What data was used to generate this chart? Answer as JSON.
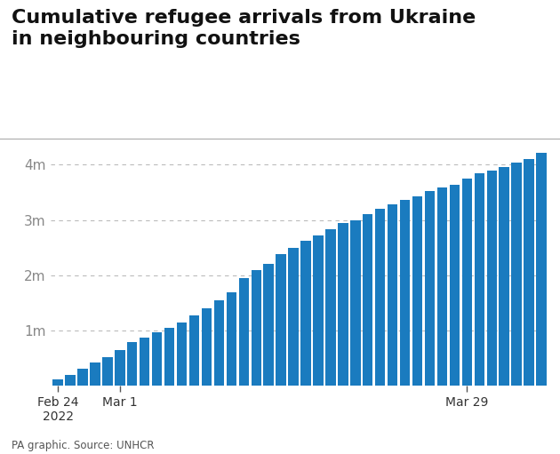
{
  "title_line1": "Cumulative refugee arrivals from Ukraine",
  "title_line2": "in neighbouring countries",
  "bar_color": "#1a7bbf",
  "background_color": "#ffffff",
  "footnote": "PA graphic. Source: UNHCR",
  "ytick_labels": [
    "1m",
    "2m",
    "3m",
    "4m"
  ],
  "ytick_values": [
    1000000,
    2000000,
    3000000,
    4000000
  ],
  "ylim": [
    0,
    4350000
  ],
  "xtick_positions": [
    0,
    5,
    33
  ],
  "xtick_labels": [
    "Feb 24\n2022",
    "Mar 1",
    "Mar 29"
  ],
  "values": [
    120000,
    200000,
    310000,
    420000,
    520000,
    650000,
    790000,
    870000,
    970000,
    1050000,
    1150000,
    1280000,
    1400000,
    1550000,
    1700000,
    1950000,
    2100000,
    2200000,
    2380000,
    2500000,
    2620000,
    2720000,
    2830000,
    2950000,
    3000000,
    3100000,
    3200000,
    3290000,
    3370000,
    3430000,
    3530000,
    3590000,
    3640000,
    3740000,
    3840000,
    3900000,
    3950000,
    4030000,
    4100000,
    4220000
  ]
}
